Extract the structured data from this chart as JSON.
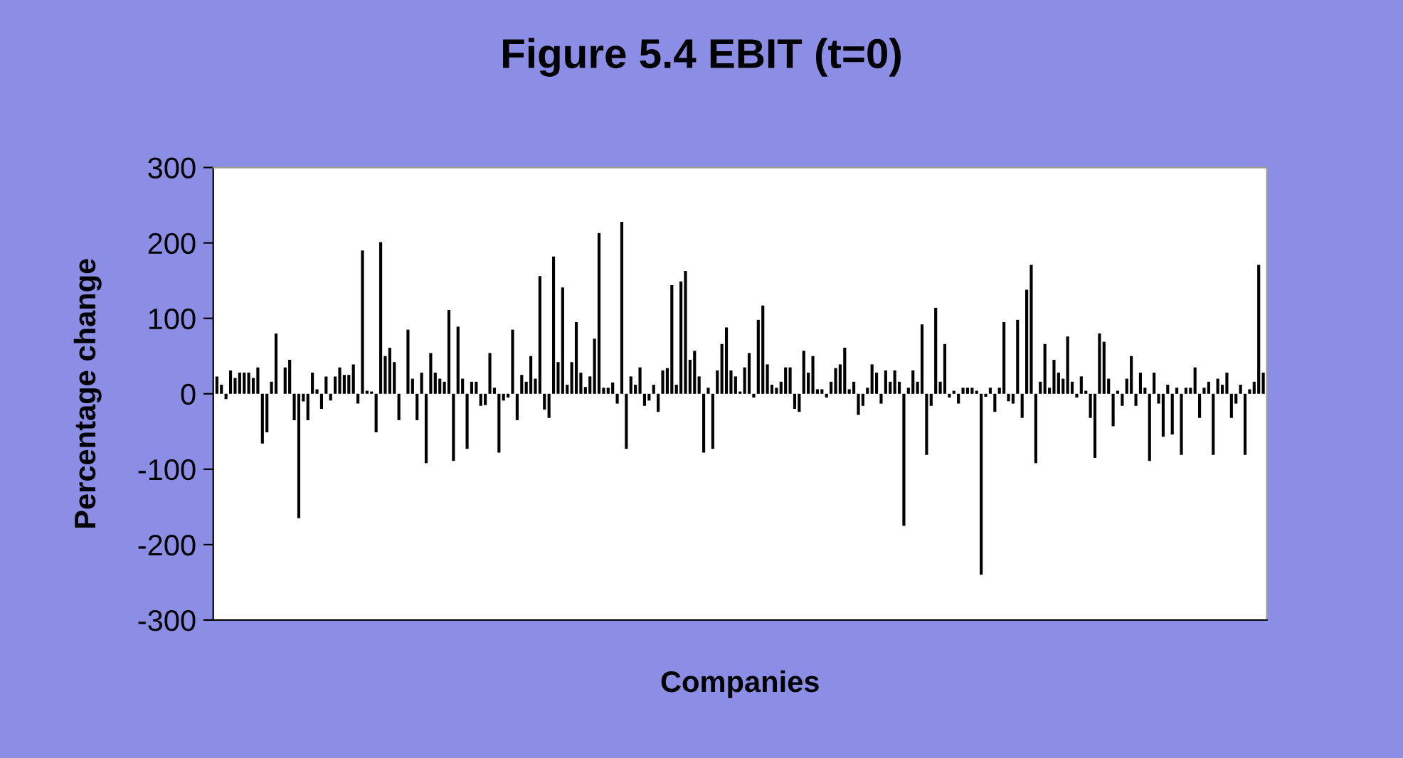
{
  "chart_data": {
    "type": "bar",
    "title": "Figure 5.4 EBIT (t=0)",
    "xlabel": "Companies",
    "ylabel": "Percentage change",
    "categories": [
      null,
      null,
      null,
      null,
      null,
      null,
      null,
      null,
      null,
      null,
      null,
      null,
      null,
      null,
      null,
      null,
      null,
      null,
      null,
      null,
      null,
      null,
      null,
      null,
      null,
      null,
      null,
      null,
      null,
      null,
      null,
      null,
      null,
      null,
      null,
      null,
      null,
      null,
      null,
      null,
      null,
      null,
      null,
      null,
      null,
      null,
      null,
      null,
      null,
      null,
      null,
      null,
      null,
      null,
      null,
      null,
      null,
      null,
      null,
      null,
      null,
      null,
      null,
      null,
      null,
      null,
      null,
      null,
      null,
      null,
      null,
      null,
      null,
      null,
      null,
      null,
      null,
      null,
      null,
      null,
      null,
      null,
      null,
      null,
      null,
      null,
      null,
      null,
      null,
      null,
      null,
      null,
      null,
      null,
      null,
      null,
      null,
      null,
      null,
      null,
      null,
      null,
      null,
      null,
      null,
      null,
      null,
      null,
      null,
      null,
      null,
      null,
      null,
      null,
      null,
      null,
      null,
      null,
      null,
      null,
      null,
      null,
      null,
      null,
      null,
      null,
      null,
      null,
      null,
      null,
      null,
      null,
      null,
      null,
      null,
      null,
      null,
      null,
      null,
      null,
      null,
      null,
      null,
      null,
      null,
      null,
      null,
      null,
      null,
      null,
      null,
      null,
      null,
      null,
      null,
      null,
      null,
      null,
      null,
      null,
      null,
      null,
      null,
      null,
      null,
      null,
      null,
      null,
      null,
      null,
      null,
      null,
      null,
      null,
      null,
      null,
      null,
      null,
      null,
      null,
      null,
      null,
      null,
      null,
      null,
      null,
      null,
      null,
      null,
      null,
      null,
      null,
      null,
      null,
      null,
      null,
      null,
      null,
      null,
      null,
      null,
      null,
      null,
      null,
      null,
      null,
      null,
      null,
      null,
      null,
      null,
      null,
      null,
      null,
      null,
      null,
      null,
      null,
      null,
      null,
      null,
      null,
      null,
      null,
      null,
      null,
      null,
      null,
      null,
      null,
      null
    ],
    "values": [
      23,
      12,
      -7,
      31,
      21,
      28,
      28,
      28,
      21,
      35,
      -66,
      -51,
      16,
      80,
      0,
      35,
      45,
      -35,
      -165,
      -10,
      -35,
      28,
      6,
      -20,
      23,
      -9,
      23,
      35,
      25,
      25,
      39,
      -13,
      190,
      4,
      3,
      -51,
      201,
      50,
      61,
      42,
      -35,
      0,
      85,
      20,
      -35,
      28,
      -92,
      54,
      28,
      20,
      16,
      111,
      -89,
      89,
      20,
      -73,
      16,
      16,
      -16,
      -15,
      54,
      8,
      -78,
      -9,
      -5,
      85,
      -35,
      25,
      16,
      50,
      20,
      156,
      -21,
      -32,
      182,
      42,
      141,
      12,
      42,
      95,
      28,
      9,
      23,
      73,
      213,
      8,
      8,
      15,
      -13,
      228,
      -73,
      23,
      12,
      35,
      -16,
      -9,
      12,
      -24,
      31,
      34,
      144,
      12,
      149,
      163,
      45,
      57,
      23,
      -78,
      8,
      -73,
      31,
      66,
      88,
      31,
      23,
      3,
      35,
      54,
      -5,
      98,
      117,
      39,
      12,
      8,
      16,
      35,
      35,
      -20,
      -24,
      57,
      28,
      50,
      6,
      6,
      -5,
      16,
      34,
      39,
      61,
      6,
      16,
      -28,
      -16,
      8,
      39,
      28,
      -13,
      31,
      16,
      31,
      16,
      -175,
      8,
      31,
      16,
      92,
      -81,
      -16,
      114,
      16,
      66,
      -5,
      4,
      -13,
      8,
      8,
      8,
      4,
      -240,
      -4,
      8,
      -24,
      8,
      95,
      -10,
      -13,
      98,
      -32,
      138,
      171,
      -92,
      16,
      66,
      8,
      45,
      28,
      20,
      76,
      16,
      -5,
      23,
      4,
      -32,
      -85,
      80,
      69,
      20,
      -43,
      4,
      -16,
      20,
      50,
      -16,
      28,
      8,
      -89,
      28,
      -13,
      -57,
      12,
      -54,
      8,
      -81,
      8,
      8,
      35,
      -32,
      8,
      16,
      -81,
      20,
      12,
      28,
      -32,
      -13,
      12,
      -81,
      6,
      16,
      171,
      28
    ],
    "color": "#000000",
    "ylim": [
      -300,
      300
    ],
    "yticks": [
      -300,
      -200,
      -100,
      0,
      100,
      200,
      300
    ],
    "grid": false
  }
}
